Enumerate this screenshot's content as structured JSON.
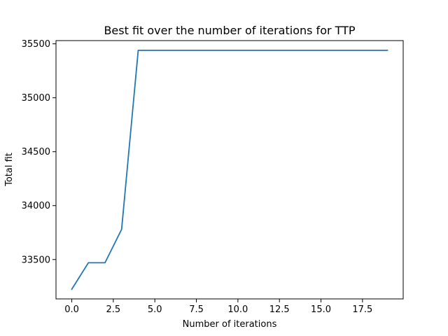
{
  "chart_data": {
    "type": "line",
    "title": "Best fit over the number of iterations for TTP",
    "xlabel": "Number of iterations",
    "ylabel": "Total fit",
    "xlim": [
      -0.95,
      19.95
    ],
    "ylim": [
      33135,
      35530
    ],
    "x_ticks": [
      0.0,
      2.5,
      5.0,
      7.5,
      10.0,
      12.5,
      15.0,
      17.5
    ],
    "x_tick_labels": [
      "0.0",
      "2.5",
      "5.0",
      "7.5",
      "10.0",
      "12.5",
      "15.0",
      "17.5"
    ],
    "y_ticks": [
      33500,
      34000,
      34500,
      35000,
      35500
    ],
    "y_tick_labels": [
      "33500",
      "34000",
      "34500",
      "35000",
      "35500"
    ],
    "grid": false,
    "legend": "none",
    "series": [
      {
        "color": "#1f77b4",
        "x": [
          0,
          1,
          2,
          3,
          4,
          5,
          6,
          7,
          8,
          9,
          10,
          11,
          12,
          13,
          14,
          15,
          16,
          17,
          18,
          19
        ],
        "y": [
          33225,
          33470,
          33470,
          33780,
          35440,
          35440,
          35440,
          35440,
          35440,
          35440,
          35440,
          35440,
          35440,
          35440,
          35440,
          35440,
          35440,
          35440,
          35440,
          35440
        ]
      }
    ]
  }
}
